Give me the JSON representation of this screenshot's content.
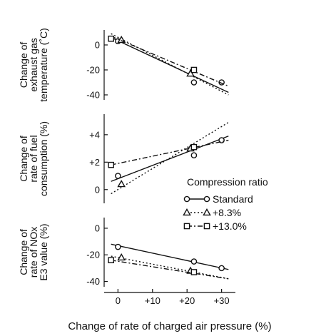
{
  "chart_data": [
    {
      "type": "line",
      "panel": "exhaust",
      "ylabel_lines": [
        "Change of",
        "exhaust gas",
        "temperature (˚C)"
      ],
      "ylim": [
        -44,
        12
      ],
      "yticks": [
        {
          "v": 0,
          "label": "0"
        },
        {
          "v": -20,
          "label": "-20"
        },
        {
          "v": -40,
          "label": "-40"
        }
      ],
      "series": [
        {
          "key": "standard",
          "points": [
            [
              0,
              3
            ],
            [
              22,
              -30
            ],
            [
              30,
              -30
            ]
          ],
          "line": [
            [
              -2,
              6
            ],
            [
              32,
              -38
            ]
          ]
        },
        {
          "key": "p83",
          "points": [
            [
              1,
              4
            ],
            [
              21,
              -23
            ]
          ],
          "line": [
            [
              -2,
              9
            ],
            [
              32,
              -40
            ]
          ]
        },
        {
          "key": "p130",
          "points": [
            [
              -2,
              5
            ],
            [
              22,
              -20
            ]
          ],
          "line": [
            [
              -2,
              7
            ],
            [
              32,
              -33
            ]
          ]
        }
      ]
    },
    {
      "type": "line",
      "panel": "fuel",
      "ylabel_lines": [
        "Change of",
        "rate of fuel",
        "consumption (%)"
      ],
      "ylim": [
        -1,
        5.5
      ],
      "yticks": [
        {
          "v": 4,
          "label": "+4"
        },
        {
          "v": 2,
          "label": "+2"
        },
        {
          "v": 0,
          "label": "0"
        }
      ],
      "series": [
        {
          "key": "standard",
          "points": [
            [
              0,
              1
            ],
            [
              22,
              2.5
            ],
            [
              30,
              3.6
            ]
          ],
          "line": [
            [
              -2,
              0.6
            ],
            [
              32,
              3.9
            ]
          ]
        },
        {
          "key": "p83",
          "points": [
            [
              1,
              0.4
            ],
            [
              21,
              3
            ]
          ],
          "line": [
            [
              -2,
              -0.3
            ],
            [
              32,
              4.9
            ]
          ]
        },
        {
          "key": "p130",
          "points": [
            [
              -2,
              1.8
            ],
            [
              22,
              3.1
            ]
          ],
          "line": [
            [
              -2,
              1.8
            ],
            [
              32,
              3.6
            ]
          ]
        }
      ]
    },
    {
      "type": "line",
      "panel": "nox",
      "ylabel_lines": [
        "Change of",
        "rate of NOx",
        "E3 value (%)"
      ],
      "ylim": [
        -44,
        8
      ],
      "yticks": [
        {
          "v": 0,
          "label": "0"
        },
        {
          "v": -20,
          "label": "-20"
        },
        {
          "v": -40,
          "label": "-40"
        }
      ],
      "xlabel": "Change of rate of charged air pressure (%)",
      "xlim": [
        -4,
        34
      ],
      "xticks": [
        {
          "v": 0,
          "label": "0"
        },
        {
          "v": 10,
          "label": "+10"
        },
        {
          "v": 20,
          "label": "+20"
        },
        {
          "v": 30,
          "label": "+30"
        }
      ],
      "series": [
        {
          "key": "standard",
          "points": [
            [
              0,
              -14
            ],
            [
              22,
              -25
            ],
            [
              30,
              -30
            ]
          ],
          "line": [
            [
              -2,
              -12
            ],
            [
              32,
              -31
            ]
          ]
        },
        {
          "key": "p83",
          "points": [
            [
              1,
              -22
            ],
            [
              21,
              -32
            ]
          ],
          "line": [
            [
              -2,
              -21
            ],
            [
              32,
              -38
            ]
          ]
        },
        {
          "key": "p130",
          "points": [
            [
              -2,
              -24
            ],
            [
              22,
              -33
            ]
          ],
          "line": [
            [
              -2,
              -24
            ],
            [
              32,
              -38
            ]
          ]
        }
      ]
    }
  ],
  "legend": {
    "title": "Compression ratio",
    "items": [
      {
        "key": "standard",
        "label": "Standard",
        "marker": "circle",
        "dash": "solid"
      },
      {
        "key": "p83",
        "label": "+8.3%",
        "marker": "triangle",
        "dash": "dotted"
      },
      {
        "key": "p130",
        "label": "+13.0%",
        "marker": "square",
        "dash": "dashdot"
      }
    ]
  },
  "colors": {
    "ink": "#111111",
    "background": "#ffffff"
  }
}
